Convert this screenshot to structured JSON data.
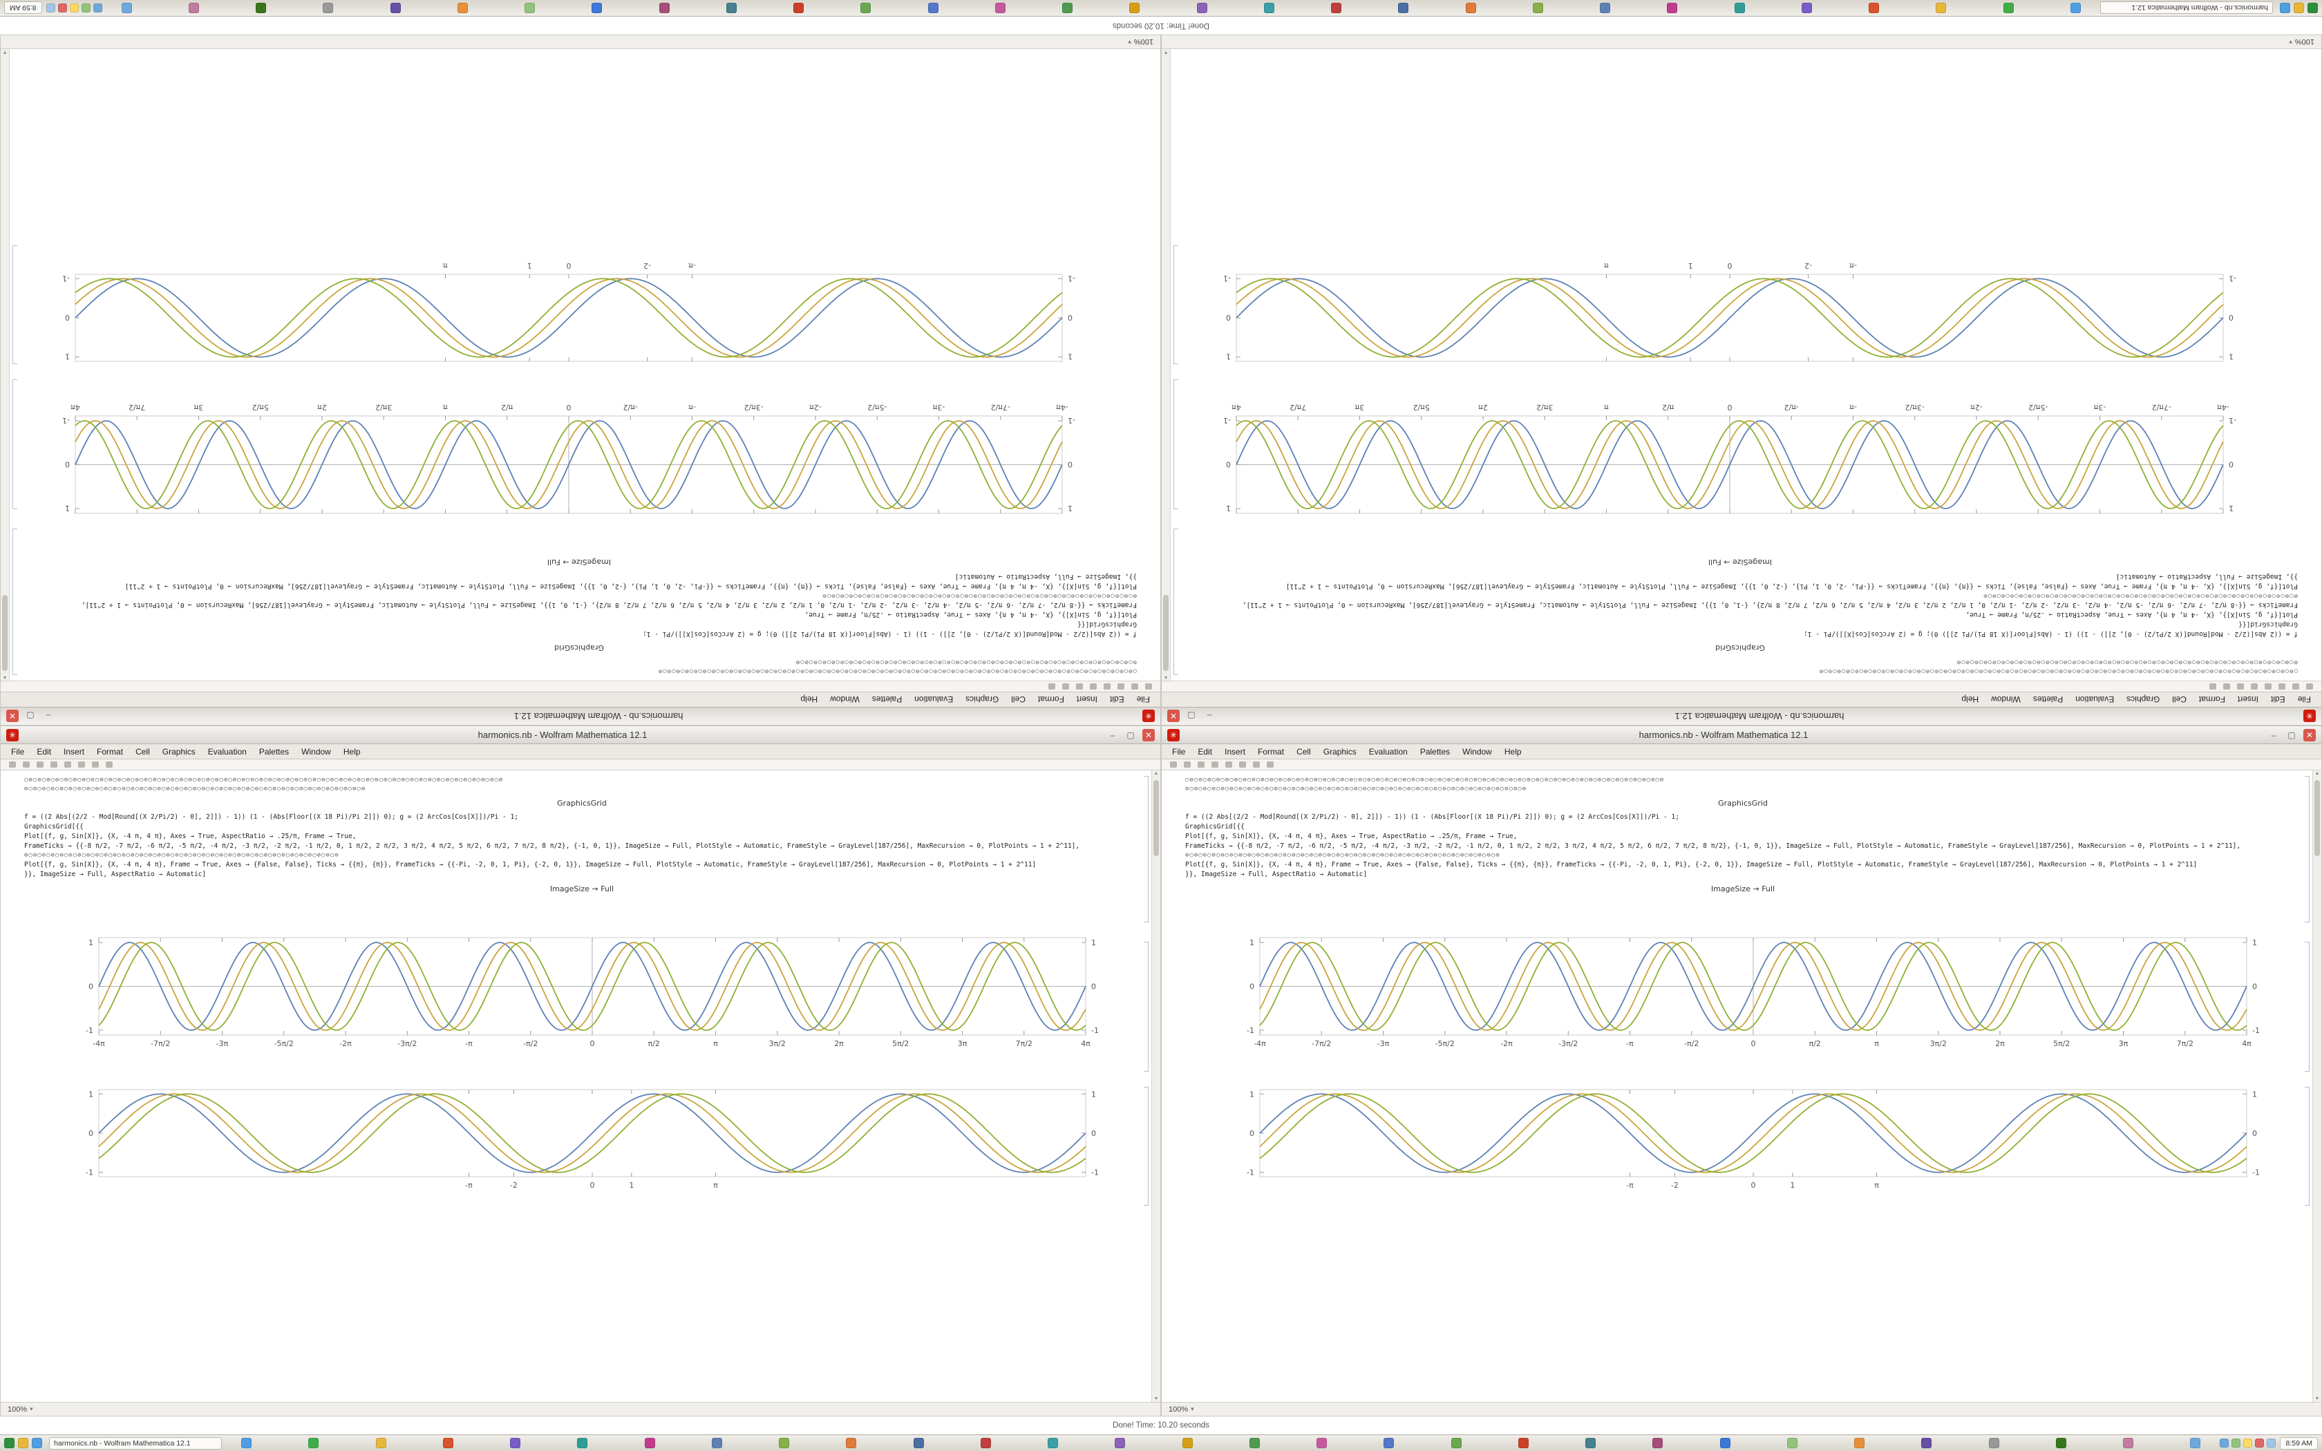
{
  "status": {
    "done_text": "Done! Time: 10.20 seconds"
  },
  "window": {
    "title": "harmonics.nb - Wolfram Mathematica 12.1",
    "app_icon_color": "#cf1c0e",
    "zoom_label": "100%",
    "controls": {
      "minimize": "–",
      "maximize": "▢",
      "close": "✕"
    },
    "menus": [
      "File",
      "Edit",
      "Insert",
      "Format",
      "Cell",
      "Graphics",
      "Evaluation",
      "Palettes",
      "Window",
      "Help"
    ]
  },
  "notebook": {
    "symbol_row_1": "○⊖○⊙○⊘○⊖○⊙○⊘○⊖○⊙○⊘○⊖○⊙○⊘○⊖○⊙○⊘○⊖○⊙○⊘○⊖○⊙○⊘○⊖○⊙○⊘○⊖○⊙○⊘○⊖○⊙○⊘○⊖○⊙○⊘○⊖○⊙○⊘○⊖○⊙○⊘○⊖○⊙○⊘○⊖○⊙○⊘○⊖○⊙○⊘○⊖○⊙○⊘○⊖○⊙○⊘",
    "symbol_row_2": "⊙○⊘○⊖○⊙○⊘○⊖○⊙○⊘○⊖○⊙○⊘○⊖○⊙○⊘○⊖○⊙○⊘○⊖○⊙○⊘○⊖○⊙○⊘○⊖○⊙○⊘○⊖○⊙○⊘○⊖○⊙○⊘○⊖○⊙○⊘○⊖○⊙○⊘○⊖",
    "symbol_row_3": "⊘○⊖○⊙○⊘○⊖○⊙○⊘○⊖○⊙○⊘○⊖○⊙○⊘○⊖○⊙○⊘○⊖○⊙○⊘○⊖○⊙○⊘○⊖○⊙○⊘○⊖○⊙○⊘○⊖○⊙○⊘○⊖○⊙○⊘○⊖○⊙",
    "caption_graphics_grid": "GraphicsGrid",
    "caption_image_size": "ImageSize → Full",
    "code_lines": [
      "f = ((2 Abs[(2/2 - Mod[Round[(X 2/Pi/2) - 0], 2]]) - 1)) (1 - (Abs[Floor[(X 18 Pi)/Pi 2]]) 0);   g = (2 ArcCos[Cos[X]])/Pi - 1;",
      "GraphicsGrid[{{",
      "Plot[{f, g, Sin[X]}, {X, -4 π, 4 π}, Axes → True, AspectRatio → .25/π, Frame → True,",
      "FrameTicks → {{-8 π/2, -7 π/2, -6 π/2, -5 π/2, -4 π/2, -3 π/2, -2 π/2, -1 π/2, 0, 1 π/2, 2 π/2, 3 π/2, 4 π/2, 5 π/2, 6 π/2, 7 π/2, 8 π/2}, {-1, 0, 1}}, ImageSize → Full, PlotStyle → Automatic, FrameStyle → GrayLevel[187/256], MaxRecursion → 0, PlotPoints → 1 + 2^11],",
      "Plot[{f, g, Sin[X]}, {X, -4 π, 4 π}, Frame → True, Axes → {False, False}, Ticks → {{π}, {π}}, FrameTicks → {{-Pi, -2, 0, 1, Pi}, {-2, 0, 1}}, ImageSize → Full, PlotStyle → Automatic, FrameStyle → GrayLevel[187/256], MaxRecursion → 0, PlotPoints → 1 + 2^11]",
      "}}, ImageSize → Full, AspectRatio → Automatic]"
    ]
  },
  "chart_data": [
    {
      "type": "line",
      "title": "",
      "xlabel": "",
      "ylabel": "",
      "x_range": [
        -12.566,
        12.566
      ],
      "y_range": [
        -1,
        1
      ],
      "frame": true,
      "axes": true,
      "grid": false,
      "height": 175,
      "frame_color": "#cccccc",
      "x_ticks": [
        {
          "v": -12.566,
          "l": "-4π"
        },
        {
          "v": -10.996,
          "l": "-7π/2"
        },
        {
          "v": -9.425,
          "l": "-3π"
        },
        {
          "v": -7.854,
          "l": "-5π/2"
        },
        {
          "v": -6.283,
          "l": "-2π"
        },
        {
          "v": -4.712,
          "l": "-3π/2"
        },
        {
          "v": -3.142,
          "l": "-π"
        },
        {
          "v": -1.571,
          "l": "-π/2"
        },
        {
          "v": 0,
          "l": "0"
        },
        {
          "v": 1.571,
          "l": "π/2"
        },
        {
          "v": 3.142,
          "l": "π"
        },
        {
          "v": 4.712,
          "l": "3π/2"
        },
        {
          "v": 6.283,
          "l": "2π"
        },
        {
          "v": 7.854,
          "l": "5π/2"
        },
        {
          "v": 9.425,
          "l": "3π"
        },
        {
          "v": 10.996,
          "l": "7π/2"
        },
        {
          "v": 12.566,
          "l": "4π"
        }
      ],
      "y_ticks": [
        {
          "v": 1,
          "l": "1"
        },
        {
          "v": 0,
          "l": "0"
        },
        {
          "v": -1,
          "l": "-1"
        }
      ],
      "series": [
        {
          "name": "f",
          "color": "#5e81b5",
          "cycles": 8,
          "phase": 0
        },
        {
          "name": "g",
          "color": "#c9a43c",
          "cycles": 8,
          "phase": -0.55
        },
        {
          "name": "Sin[X]",
          "color": "#8fb032",
          "cycles": 8,
          "phase": -1.1
        }
      ]
    },
    {
      "type": "line",
      "title": "",
      "xlabel": "",
      "ylabel": "",
      "x_range": [
        -12.566,
        12.566
      ],
      "y_range": [
        -1,
        1
      ],
      "frame": true,
      "axes": false,
      "grid": false,
      "height": 160,
      "frame_color": "#cccccc",
      "x_ticks": [
        {
          "v": -3.142,
          "l": "-π"
        },
        {
          "v": -2,
          "l": "-2"
        },
        {
          "v": 0,
          "l": "0"
        },
        {
          "v": 1,
          "l": "1"
        },
        {
          "v": 3.142,
          "l": "π"
        }
      ],
      "y_ticks": [
        {
          "v": 1,
          "l": "1"
        },
        {
          "v": 0,
          "l": "0"
        },
        {
          "v": -1,
          "l": "-1"
        }
      ],
      "series": [
        {
          "name": "f",
          "color": "#5e81b5",
          "cycles": 4,
          "phase": 0
        },
        {
          "name": "g",
          "color": "#c9a43c",
          "cycles": 4,
          "phase": -0.35
        },
        {
          "name": "Sin[X]",
          "color": "#8fb032",
          "cycles": 4,
          "phase": -0.7
        }
      ]
    }
  ],
  "taskbar": {
    "clock": "8:59 AM",
    "launcher_icon_colors": [
      "#2d8f3c",
      "#e8b73a",
      "#4f9ee3"
    ],
    "tray_icon_colors": [
      "#6fa8dc",
      "#93c47d",
      "#ffd966",
      "#e06666",
      "#9fc5e8"
    ],
    "app_icon_colors": [
      "#4f9ee3",
      "#3fae49",
      "#e8b73a",
      "#d9532c",
      "#7a5cc6",
      "#2e9e97",
      "#c23b8e",
      "#5e81b5",
      "#88b04b",
      "#e07b39",
      "#4a6fa5",
      "#bf3f3f",
      "#3aa0a8",
      "#8a62b8",
      "#d4a017",
      "#4e9a51",
      "#c75a9e",
      "#5577c9",
      "#6aa84f",
      "#cc4125",
      "#45818e",
      "#a64d79",
      "#3c78d8",
      "#93c47d",
      "#e69138",
      "#674ea7",
      "#999999",
      "#38761d",
      "#c27ba0",
      "#6fa8dc"
    ]
  }
}
